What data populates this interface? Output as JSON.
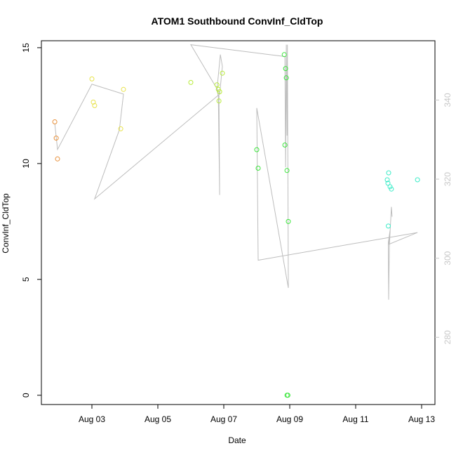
{
  "chart_data": {
    "type": "scatter",
    "title": "ATOM1 Southbound ConvInf_CldTop",
    "xlabel": "Date",
    "ylabel": "ConvInf_CldTop",
    "x_ticks": [
      "Aug 03",
      "Aug 05",
      "Aug 07",
      "Aug 09",
      "Aug 11",
      "Aug 13"
    ],
    "y_ticks": [
      "0",
      "5",
      "10",
      "15"
    ],
    "y2_ticks": [
      "280",
      "300",
      "320",
      "340"
    ],
    "ylim": [
      -0.4,
      15.3
    ],
    "y2lim": [
      263,
      355
    ],
    "grid": false,
    "legend": "none",
    "colors": {
      "line": "#bdbdbd",
      "axis": "#000000",
      "right_axis": "#c8c8c8"
    },
    "series": [
      {
        "color": "#e8903a",
        "points": [
          {
            "x": "2020-08-01 21:00",
            "y": 11.8
          },
          {
            "x": "2020-08-01 22:00",
            "y": 11.1
          },
          {
            "x": "2020-08-01 23:00",
            "y": 10.2
          }
        ]
      },
      {
        "color": "#e8e24a",
        "points": [
          {
            "x": "2020-08-03 00:00",
            "y": 13.65
          },
          {
            "x": "2020-08-03 01:00",
            "y": 12.65
          },
          {
            "x": "2020-08-03 02:00",
            "y": 12.5
          },
          {
            "x": "2020-08-03 21:00",
            "y": 11.5
          },
          {
            "x": "2020-08-03 23:00",
            "y": 13.2
          }
        ]
      },
      {
        "color": "#b8ec3a",
        "points": [
          {
            "x": "2020-08-06 00:00",
            "y": 13.5
          },
          {
            "x": "2020-08-06 19:00",
            "y": 13.4
          },
          {
            "x": "2020-08-06 20:00",
            "y": 13.2
          },
          {
            "x": "2020-08-06 21:00",
            "y": 13.1
          },
          {
            "x": "2020-08-06 20:30",
            "y": 12.7
          },
          {
            "x": "2020-08-06 23:00",
            "y": 13.9
          }
        ]
      },
      {
        "color": "#3ce63c",
        "points": [
          {
            "x": "2020-08-08 00:00",
            "y": 10.6
          },
          {
            "x": "2020-08-08 01:00",
            "y": 9.8
          },
          {
            "x": "2020-08-08 20:00",
            "y": 14.7
          },
          {
            "x": "2020-08-08 21:00",
            "y": 14.1
          },
          {
            "x": "2020-08-08 21:30",
            "y": 13.7
          },
          {
            "x": "2020-08-08 20:30",
            "y": 10.8
          },
          {
            "x": "2020-08-08 22:00",
            "y": 9.7
          },
          {
            "x": "2020-08-08 23:00",
            "y": 7.5
          },
          {
            "x": "2020-08-08 22:00",
            "y": 0.0
          },
          {
            "x": "2020-08-08 22:40",
            "y": 0.0
          }
        ]
      },
      {
        "color": "#3cecc8",
        "points": [
          {
            "x": "2020-08-12 00:00",
            "y": 9.6
          },
          {
            "x": "2020-08-11 23:00",
            "y": 9.3
          },
          {
            "x": "2020-08-11 23:30",
            "y": 9.15
          },
          {
            "x": "2020-08-12 01:00",
            "y": 9.0
          },
          {
            "x": "2020-08-12 02:00",
            "y": 8.9
          },
          {
            "x": "2020-08-11 23:45",
            "y": 7.3
          },
          {
            "x": "2020-08-12 21:00",
            "y": 9.3
          }
        ]
      }
    ],
    "right_axis_line": [
      {
        "x": "2020-08-01 21:00",
        "y": 334
      },
      {
        "x": "2020-08-01 23:00",
        "y": 327.5
      },
      {
        "x": "2020-08-03 00:00",
        "y": 344
      },
      {
        "x": "2020-08-03 23:00",
        "y": 341.5
      },
      {
        "x": "2020-08-03 20:00",
        "y": 332.5
      },
      {
        "x": "2020-08-03 02:00",
        "y": 315
      },
      {
        "x": "2020-08-06 21:00",
        "y": 341.5
      },
      {
        "x": "2020-08-06 23:00",
        "y": 348.5
      },
      {
        "x": "2020-08-06 21:30",
        "y": 351.5
      },
      {
        "x": "2020-08-06 19:00",
        "y": 342.5
      },
      {
        "x": "2020-08-06 20:00",
        "y": 341
      },
      {
        "x": "2020-08-06 21:00",
        "y": 316
      },
      {
        "x": "2020-08-06 20:30",
        "y": 342
      },
      {
        "x": "2020-08-06 00:00",
        "y": 354
      },
      {
        "x": "2020-08-08 20:30",
        "y": 351
      },
      {
        "x": "2020-08-08 21:00",
        "y": 323
      },
      {
        "x": "2020-08-08 21:30",
        "y": 354
      },
      {
        "x": "2020-08-08 22:00",
        "y": 331
      },
      {
        "x": "2020-08-08 22:20",
        "y": 354
      },
      {
        "x": "2020-08-08 23:00",
        "y": 292.5
      },
      {
        "x": "2020-08-08 00:00",
        "y": 338
      },
      {
        "x": "2020-08-08 01:00",
        "y": 299.5
      },
      {
        "x": "2020-08-12 21:00",
        "y": 306.5
      },
      {
        "x": "2020-08-12 00:00",
        "y": 303.5
      },
      {
        "x": "2020-08-12 01:00",
        "y": 307
      },
      {
        "x": "2020-08-11 23:45",
        "y": 304
      },
      {
        "x": "2020-08-12 00:00",
        "y": 289.5
      },
      {
        "x": "2020-08-12 00:30",
        "y": 303
      },
      {
        "x": "2020-08-12 02:00",
        "y": 313
      },
      {
        "x": "2020-08-12 02:30",
        "y": 310.5
      }
    ]
  }
}
